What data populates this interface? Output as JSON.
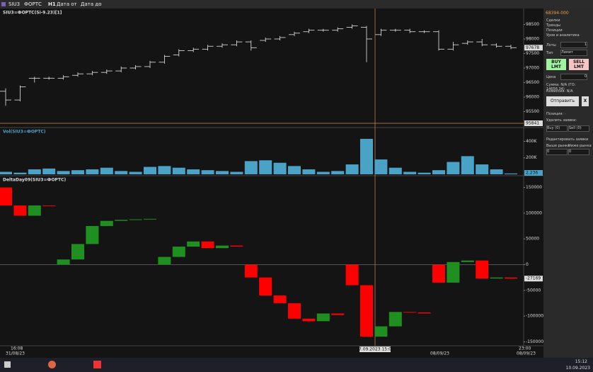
{
  "toolbar": {
    "symbol": "SIU3",
    "exchange": "ФОРТС",
    "timeframe": "H1",
    "date_from": "Дата от",
    "date_to": "Дата до"
  },
  "chart_data": [
    {
      "type": "ohlc",
      "title": "SIU3=ФОРТС(Si-9.23)[1]",
      "last_label": "97678",
      "cursor_label": "95841",
      "open": [
        96200,
        95900,
        96650,
        96650,
        96650,
        96750,
        96800,
        96850,
        96900,
        97000,
        97050,
        97200,
        97450,
        97600,
        97650,
        97750,
        97800,
        97900,
        97950,
        98000,
        98150,
        98250,
        98300,
        98300,
        98400,
        98400,
        98150,
        98300,
        98300,
        98250,
        98250,
        97650,
        97850,
        97900,
        97800,
        97750
      ],
      "high": [
        96300,
        96400,
        96700,
        96700,
        96750,
        96850,
        96900,
        96950,
        97050,
        97100,
        97250,
        97450,
        97650,
        97700,
        97800,
        97850,
        97950,
        97950,
        98050,
        98100,
        98250,
        98350,
        98350,
        98400,
        98500,
        98450,
        98350,
        98350,
        98350,
        98300,
        98300,
        97900,
        97950,
        98000,
        97850,
        97800
      ],
      "low": [
        95700,
        95850,
        96500,
        96600,
        96600,
        96700,
        96750,
        96800,
        96850,
        96950,
        97000,
        97150,
        97400,
        97550,
        97600,
        97700,
        97750,
        97600,
        97900,
        97950,
        98100,
        98200,
        98250,
        98250,
        98350,
        97200,
        98100,
        98250,
        98200,
        98200,
        97600,
        97600,
        97800,
        97750,
        97700,
        97650
      ],
      "close": [
        95900,
        96350,
        96650,
        96650,
        96700,
        96800,
        96850,
        96900,
        97000,
        97050,
        97200,
        97400,
        97600,
        97650,
        97750,
        97800,
        97900,
        97700,
        98000,
        98050,
        98200,
        98300,
        98300,
        98350,
        98450,
        98000,
        98300,
        98300,
        98250,
        98250,
        97650,
        97800,
        97900,
        97800,
        97750,
        97700
      ],
      "color": "#e6e6e6",
      "ylim": [
        95000,
        99000
      ],
      "yticks": [
        95500,
        96000,
        96500,
        97000,
        97500,
        98000,
        98500
      ]
    },
    {
      "type": "bar",
      "title": "Vol(SIU3=ФОРТС)",
      "last_label": "2,236",
      "color": "#4aa3c7",
      "values": [
        30000,
        20000,
        60000,
        70000,
        40000,
        50000,
        60000,
        80000,
        40000,
        30000,
        90000,
        100000,
        80000,
        60000,
        50000,
        40000,
        30000,
        160000,
        170000,
        140000,
        100000,
        60000,
        30000,
        40000,
        120000,
        430000,
        180000,
        80000,
        30000,
        20000,
        50000,
        150000,
        220000,
        120000,
        60000,
        10000
      ],
      "ylim": [
        0,
        550000
      ],
      "yticks": [
        {
          "value": 200000,
          "label": "200K"
        },
        {
          "value": 400000,
          "label": "400K"
        }
      ]
    },
    {
      "type": "delta",
      "title": "DeltaDay09(SIU3=ФОРТС)",
      "last_label": "-27169",
      "up_color": "#1f8f1f",
      "down_color": "#ff0000",
      "open": [
        150000,
        115000,
        95000,
        115000,
        0,
        10000,
        40000,
        75000,
        85000,
        87000,
        88000,
        0,
        15000,
        35000,
        45000,
        32000,
        37000,
        0,
        -25000,
        -60000,
        -75000,
        -105000,
        -110000,
        -95000,
        0,
        -40000,
        -140000,
        -120000,
        -92000,
        -93000,
        0,
        -35000,
        5000,
        8000,
        -27000,
        -25000
      ],
      "close": [
        115000,
        95000,
        115000,
        114000,
        10000,
        40000,
        75000,
        85000,
        87000,
        88000,
        89000,
        15000,
        35000,
        45000,
        32000,
        37000,
        35000,
        -25000,
        -60000,
        -75000,
        -105000,
        -110000,
        -95000,
        -98000,
        -40000,
        -140000,
        -120000,
        -92000,
        -93000,
        -95000,
        -35000,
        5000,
        8000,
        -27000,
        -25000,
        -27169
      ],
      "ylim": [
        -155000,
        170000
      ],
      "yticks": [
        -150000,
        -100000,
        -50000,
        0,
        50000,
        100000,
        150000
      ]
    }
  ],
  "x_axis": {
    "start_time": "16:08",
    "start_date": "31/08/23",
    "cursor": "07.09.2023 15:00",
    "mid_date": "08/09/23",
    "end_time": "23:00",
    "end_date": "08/09/23"
  },
  "panel": {
    "account": "68394-000",
    "options": [
      "Сделки",
      "Тренды",
      "Позиции",
      "Уров и аналитика"
    ],
    "lots_label": "Лоты",
    "lots": "1",
    "type_label": "Тип",
    "type": "Лимит",
    "buy": "BUY LMT",
    "sell": "SELL LMT",
    "price_label": "Цена",
    "price": "0",
    "sum": "Сумма: N/A (ГО: 14656,34)",
    "commission": "Комиссия: N/A",
    "send": "Отправить",
    "close": "X",
    "position_label": "Позиция:",
    "position": "-",
    "delete_label": "Удалить заявки:",
    "buy_orders": "Buy (0)",
    "sell_orders": "Sell (0)",
    "edit_label": "Редактировать заявки",
    "above": "Выше рынка",
    "below": "Ниже рынка",
    "above_value": "0",
    "below_value": "0"
  },
  "taskbar": {
    "time": "15:12",
    "date": "10.09.2023"
  }
}
